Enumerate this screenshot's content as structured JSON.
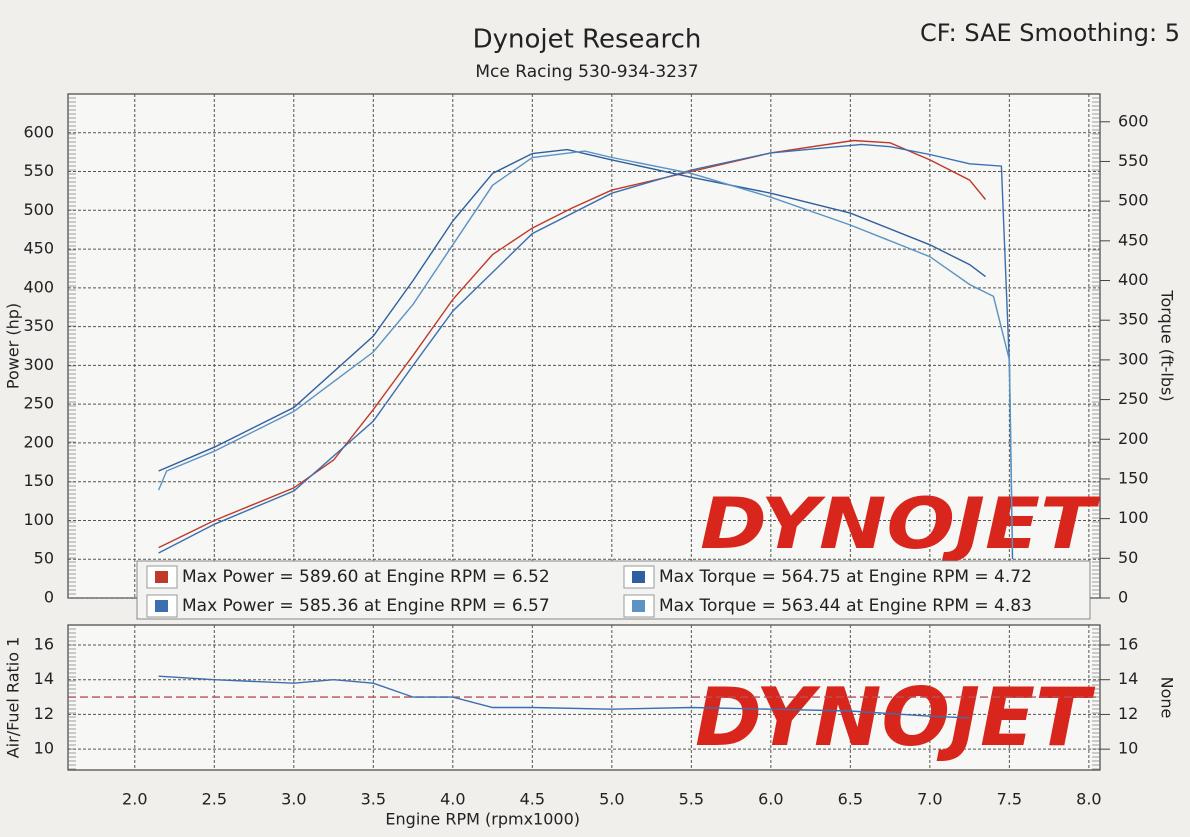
{
  "chart_data": [
    {
      "type": "line",
      "title": "Dynojet Research",
      "subtitle": "Mce Racing 530-934-3237",
      "corner_note": "CF: SAE Smoothing: 5",
      "watermark": "DYNOJET",
      "y_label": "Power (hp)",
      "y2_label": "Torque (ft-lbs)",
      "xlim": [
        1.58,
        8.07
      ],
      "xticks": [
        2,
        2.5,
        3,
        3.5,
        4,
        4.5,
        5,
        5.5,
        6,
        6.5,
        7,
        7.5,
        8
      ],
      "ylim": [
        0,
        650
      ],
      "yticks": [
        0,
        50,
        100,
        150,
        200,
        250,
        300,
        350,
        400,
        450,
        500,
        550,
        600
      ],
      "y2lim": [
        0,
        635
      ],
      "y2ticks": [
        0,
        50,
        100,
        150,
        200,
        250,
        300,
        350,
        400,
        450,
        500,
        550,
        600
      ],
      "grid": true,
      "legend": "bottom",
      "series": [
        {
          "name": "Max Power = 589.60 at Engine RPM = 6.52",
          "color": "#c0392b",
          "x": [
            2.15,
            2.5,
            3.0,
            3.25,
            3.5,
            3.75,
            4.0,
            4.25,
            4.5,
            4.75,
            5.0,
            5.5,
            6.0,
            6.52,
            6.75,
            7.0,
            7.25,
            7.35
          ],
          "values": [
            65,
            100,
            142,
            178,
            243,
            313,
            385,
            443,
            477,
            503,
            526,
            550,
            574,
            590,
            587,
            565,
            539,
            514
          ]
        },
        {
          "name": "Max Power = 585.36 at Engine RPM = 6.57",
          "color": "#3a6fb0",
          "x": [
            2.15,
            2.5,
            3.0,
            3.5,
            3.75,
            4.0,
            4.5,
            5.0,
            5.5,
            6.0,
            6.57,
            6.75,
            7.0,
            7.25,
            7.45,
            7.5,
            7.52
          ],
          "values": [
            58,
            95,
            138,
            228,
            300,
            370,
            470,
            522,
            552,
            574,
            585,
            582,
            572,
            560,
            557,
            300,
            50
          ]
        },
        {
          "name": "Max Torque = 564.75 at Engine RPM = 4.72",
          "color": "#2f5f9e",
          "axis": "y2",
          "x": [
            2.15,
            2.5,
            3.0,
            3.5,
            3.75,
            4.0,
            4.25,
            4.5,
            4.72,
            5.0,
            5.5,
            6.0,
            6.5,
            7.0,
            7.25,
            7.35
          ],
          "values": [
            160,
            190,
            240,
            330,
            400,
            475,
            535,
            560,
            565,
            552,
            530,
            510,
            485,
            445,
            420,
            405
          ]
        },
        {
          "name": "Max Torque = 563.44 at Engine RPM = 4.83",
          "color": "#5b93c4",
          "axis": "y2",
          "x": [
            2.15,
            2.2,
            2.5,
            3.0,
            3.5,
            3.75,
            4.0,
            4.25,
            4.5,
            4.83,
            5.0,
            5.5,
            6.0,
            6.5,
            7.0,
            7.25,
            7.4,
            7.5,
            7.52
          ],
          "values": [
            136,
            160,
            185,
            235,
            310,
            370,
            445,
            520,
            555,
            563,
            555,
            535,
            505,
            470,
            430,
            395,
            380,
            300,
            60
          ]
        }
      ]
    },
    {
      "type": "line",
      "watermark": "DYNOJET",
      "x_label": "Engine RPM (rpmx1000)",
      "y_label": "Air/Fuel Ratio 1",
      "y2_label": "None",
      "xlim": [
        1.58,
        8.07
      ],
      "xticks": [
        {
          "value": 2,
          "label": "2.0"
        },
        2.5,
        {
          "value": 3,
          "label": "3.0"
        },
        3.5,
        {
          "value": 4,
          "label": "4.0"
        },
        4.5,
        {
          "value": 5,
          "label": "5.0"
        },
        5.5,
        {
          "value": 6,
          "label": "6.0"
        },
        6.5,
        {
          "value": 7,
          "label": "7.0"
        },
        7.5,
        {
          "value": 8,
          "label": "8.0"
        }
      ],
      "ylim": [
        8.8,
        17.15
      ],
      "yticks": [
        10,
        12,
        14,
        16
      ],
      "y2lim": [
        8.8,
        17.15
      ],
      "y2ticks": [
        10,
        12,
        14,
        16
      ],
      "grid": true,
      "reference_line": {
        "value": 13,
        "color": "#b5505a"
      },
      "series": [
        {
          "color": "#3a6fb0",
          "x": [
            2.15,
            2.5,
            3.0,
            3.25,
            3.5,
            3.75,
            4.0,
            4.25,
            4.5,
            5.0,
            5.5,
            6.0,
            6.5,
            7.0,
            7.25
          ],
          "values": [
            14.2,
            14.0,
            13.8,
            14.0,
            13.8,
            13.0,
            13.0,
            12.4,
            12.4,
            12.3,
            12.4,
            12.3,
            12.2,
            11.9,
            11.8
          ]
        }
      ]
    }
  ]
}
